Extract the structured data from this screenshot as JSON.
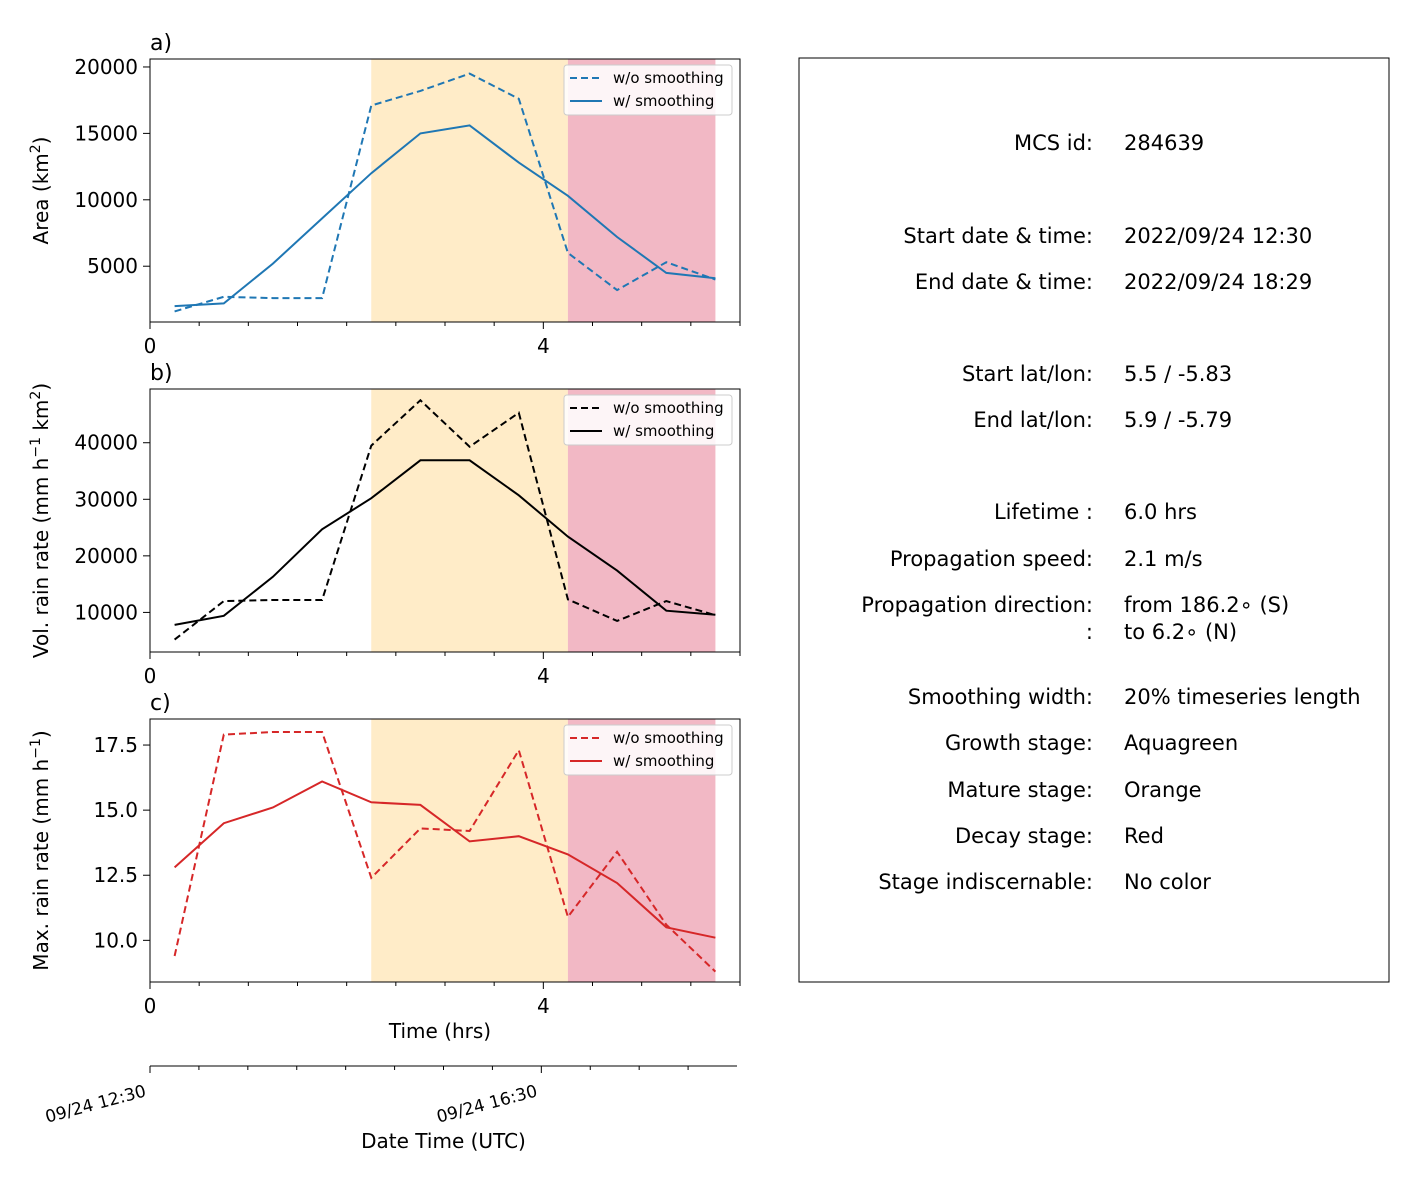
{
  "chart_data": [
    {
      "type": "line",
      "panel_label": "a)",
      "ylabel": "Area  (km$^2$)",
      "ylabel_parts": {
        "pre": "Area  (km",
        "sup": "2",
        "post": ")"
      },
      "xlabel": "",
      "xlim": [
        0,
        6.0
      ],
      "ylim": [
        800,
        20600
      ],
      "xticks": [
        {
          "v": 0,
          "label": "0"
        },
        {
          "v": 4,
          "label": "4"
        }
      ],
      "yticks": [
        {
          "v": 5000,
          "label": "5000"
        },
        {
          "v": 10000,
          "label": "10000"
        },
        {
          "v": 15000,
          "label": "15000"
        },
        {
          "v": 20000,
          "label": "20000"
        }
      ],
      "color": "#1f77b4",
      "x": [
        0.25,
        0.75,
        1.25,
        1.75,
        2.25,
        2.75,
        3.25,
        3.75,
        4.25,
        4.75,
        5.25,
        5.75
      ],
      "series": [
        {
          "name": "w/o smoothing",
          "style": "dashed",
          "values": [
            1600,
            2700,
            2600,
            2600,
            17100,
            18200,
            19500,
            17600,
            6000,
            3200,
            5300,
            4000
          ]
        },
        {
          "name": "w/ smoothing",
          "style": "solid",
          "values": [
            2000,
            2200,
            5200,
            8600,
            12000,
            15000,
            15600,
            12800,
            10300,
            7200,
            4500,
            4100
          ]
        }
      ],
      "legend_position": "upper right",
      "stage_shading": [
        {
          "stage": "mature",
          "from": 2.25,
          "to": 4.25,
          "color": "#ffecc8"
        },
        {
          "stage": "decay",
          "from": 4.25,
          "to": 5.75,
          "color": "#f2b8c5"
        }
      ]
    },
    {
      "type": "line",
      "panel_label": "b)",
      "ylabel": "Vol. rain rate (mm h$^{-1}$ km$^2$)",
      "ylabel_parts": {
        "pre": "Vol. rain rate (mm h",
        "sup": "−1",
        "mid": " km",
        "sup2": "2",
        "post": ")"
      },
      "xlabel": "",
      "xlim": [
        0,
        6.0
      ],
      "ylim": [
        3000,
        49500
      ],
      "xticks": [
        {
          "v": 0,
          "label": "0"
        },
        {
          "v": 4,
          "label": "4"
        }
      ],
      "yticks": [
        {
          "v": 10000,
          "label": "10000"
        },
        {
          "v": 20000,
          "label": "20000"
        },
        {
          "v": 30000,
          "label": "30000"
        },
        {
          "v": 40000,
          "label": "40000"
        }
      ],
      "color": "#000000",
      "x": [
        0.25,
        0.75,
        1.25,
        1.75,
        2.25,
        2.75,
        3.25,
        3.75,
        4.25,
        4.75,
        5.25,
        5.75
      ],
      "series": [
        {
          "name": "w/o smoothing",
          "style": "dashed",
          "values": [
            5200,
            12000,
            12200,
            12200,
            39500,
            47500,
            39300,
            45300,
            12300,
            8500,
            12000,
            9500
          ]
        },
        {
          "name": "w/ smoothing",
          "style": "solid",
          "values": [
            7800,
            9400,
            16300,
            24700,
            30200,
            36900,
            36900,
            30700,
            23400,
            17400,
            10300,
            9600
          ]
        }
      ],
      "legend_position": "upper right",
      "stage_shading": [
        {
          "stage": "mature",
          "from": 2.25,
          "to": 4.25,
          "color": "#ffecc8"
        },
        {
          "stage": "decay",
          "from": 4.25,
          "to": 5.75,
          "color": "#f2b8c5"
        }
      ]
    },
    {
      "type": "line",
      "panel_label": "c)",
      "ylabel": "Max. rain rate  (mm h$^{-1}$)",
      "ylabel_parts": {
        "pre": "Max. rain rate  (mm h",
        "sup": "−1",
        "post": ")"
      },
      "xlabel": "Time (hrs)",
      "xlim": [
        0,
        6.0
      ],
      "ylim": [
        8.4,
        18.5
      ],
      "xticks": [
        {
          "v": 0,
          "label": "0"
        },
        {
          "v": 4,
          "label": "4"
        }
      ],
      "yticks": [
        {
          "v": 10.0,
          "label": "10.0"
        },
        {
          "v": 12.5,
          "label": "12.5"
        },
        {
          "v": 15.0,
          "label": "15.0"
        },
        {
          "v": 17.5,
          "label": "17.5"
        }
      ],
      "color": "#d62728",
      "x": [
        0.25,
        0.75,
        1.25,
        1.75,
        2.25,
        2.75,
        3.25,
        3.75,
        4.25,
        4.75,
        5.25,
        5.75
      ],
      "series": [
        {
          "name": "w/o smoothing",
          "style": "dashed",
          "values": [
            9.4,
            17.9,
            18.0,
            18.0,
            12.4,
            14.3,
            14.2,
            17.3,
            10.9,
            13.4,
            10.6,
            8.8
          ]
        },
        {
          "name": "w/ smoothing",
          "style": "solid",
          "values": [
            12.8,
            14.5,
            15.1,
            16.1,
            15.3,
            15.2,
            13.8,
            14.0,
            13.3,
            12.2,
            10.5,
            10.1
          ]
        }
      ],
      "legend_position": "upper right",
      "stage_shading": [
        {
          "stage": "mature",
          "from": 2.25,
          "to": 4.25,
          "color": "#ffecc8"
        },
        {
          "stage": "decay",
          "from": 4.25,
          "to": 5.75,
          "color": "#f2b8c5"
        }
      ]
    }
  ],
  "date_axis": {
    "xlabel": "Date Time (UTC)",
    "xlim_hours": [
      0,
      6.0
    ],
    "ticks": [
      {
        "v": 0,
        "label": "09/24 12:30"
      },
      {
        "v": 4,
        "label": "09/24 16:30"
      }
    ]
  },
  "info_panel": {
    "rows": [
      {
        "key": "MCS id:",
        "value": "284639"
      },
      {
        "key": "Start date & time:",
        "value": "2022/09/24 12:30"
      },
      {
        "key": "End date & time:",
        "value": "2022/09/24 18:29"
      },
      {
        "key": "Start lat/lon:",
        "value": "5.5 / -5.83"
      },
      {
        "key": "End lat/lon:",
        "value": "5.9 / -5.79"
      },
      {
        "key": "Lifetime :",
        "value": "6.0 hrs"
      },
      {
        "key": "Propagation speed:",
        "value": "2.1 m/s"
      },
      {
        "key": "Propagation direction:",
        "value": "from 186.2∘ (S)"
      },
      {
        "key": ":",
        "value": "to     6.2∘ (N)"
      },
      {
        "key": "Smoothing width:",
        "value": "20% timeseries length"
      },
      {
        "key": "Growth stage:",
        "value": "Aquagreen"
      },
      {
        "key": "Mature stage:",
        "value": "Orange"
      },
      {
        "key": "Decay stage:",
        "value": "Red"
      },
      {
        "key": "Stage indiscernable:",
        "value": "No color"
      }
    ]
  }
}
